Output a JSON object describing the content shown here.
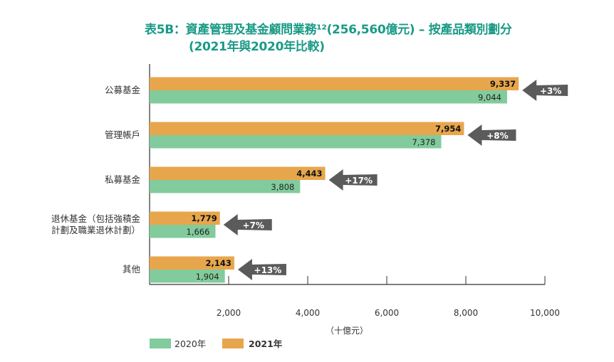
{
  "chart_data": {
    "type": "bar",
    "orientation": "horizontal",
    "title": "表5B：資產管理及基金顧問業務¹²(256,560億元) – 按產品類別劃分",
    "subtitle": "(2021年與2020年比較)",
    "xlabel": "（十億元）",
    "ylabel": "",
    "xlim": [
      0,
      10000
    ],
    "xticks": [
      "2,000",
      "4,000",
      "6,000",
      "8,000",
      "10,000"
    ],
    "grid": false,
    "legend_position": "bottom-left",
    "categories": [
      [
        "公募基金"
      ],
      [
        "管理帳戶"
      ],
      [
        "私募基金"
      ],
      [
        "退休基金（包括強積金",
        "計劃及職業退休計劃）"
      ],
      [
        "其他"
      ]
    ],
    "series": [
      {
        "name": "2021年",
        "color": "#e8a64c",
        "values": [
          9337,
          7954,
          4443,
          1779,
          2143
        ],
        "labels": [
          "9,337",
          "7,954",
          "4,443",
          "1,779",
          "2,143"
        ]
      },
      {
        "name": "2020年",
        "color": "#82cb9c",
        "values": [
          9044,
          7378,
          3808,
          1666,
          1904
        ],
        "labels": [
          "9,044",
          "7,378",
          "3,808",
          "1,666",
          "1,904"
        ]
      }
    ],
    "annotations": [
      "+3%",
      "+8%",
      "+17%",
      "+7%",
      "+13%"
    ],
    "annotation_color": "#5b5b5b",
    "legend": [
      "2020年",
      "2021年"
    ]
  }
}
